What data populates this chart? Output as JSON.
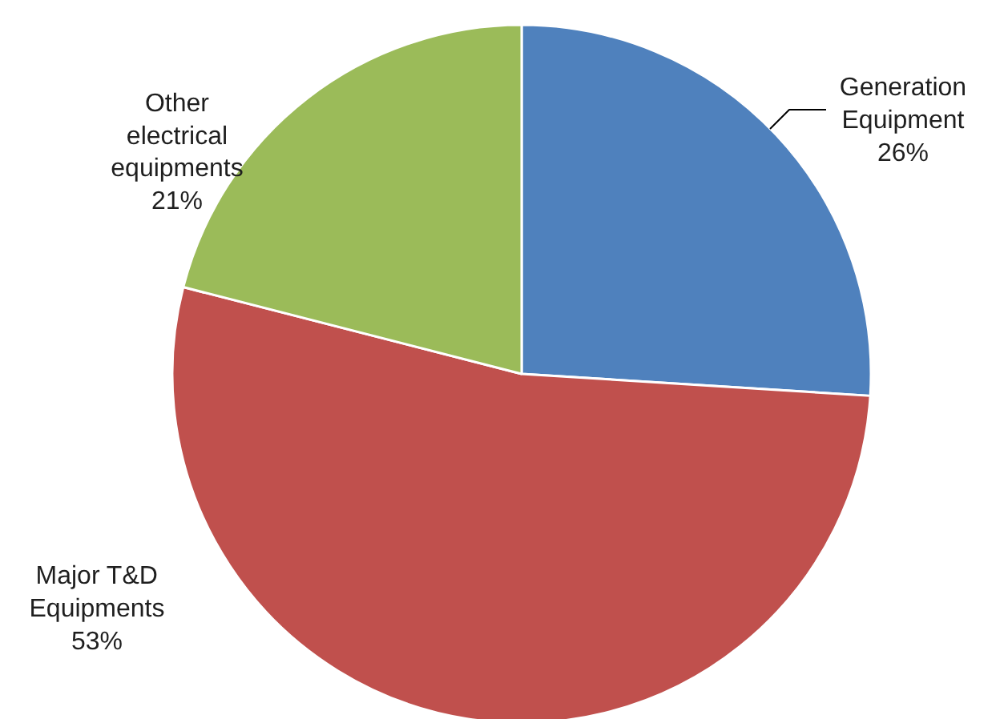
{
  "chart_data": {
    "type": "pie",
    "categories": [
      "Generation Equipment",
      "Major T&D Equipments",
      "Other electrical equipments"
    ],
    "values": [
      26,
      53,
      21
    ],
    "colors": [
      "#4f81bd",
      "#c0504d",
      "#9bbb59"
    ],
    "value_labels": [
      "26%",
      "53%",
      "21%"
    ]
  }
}
